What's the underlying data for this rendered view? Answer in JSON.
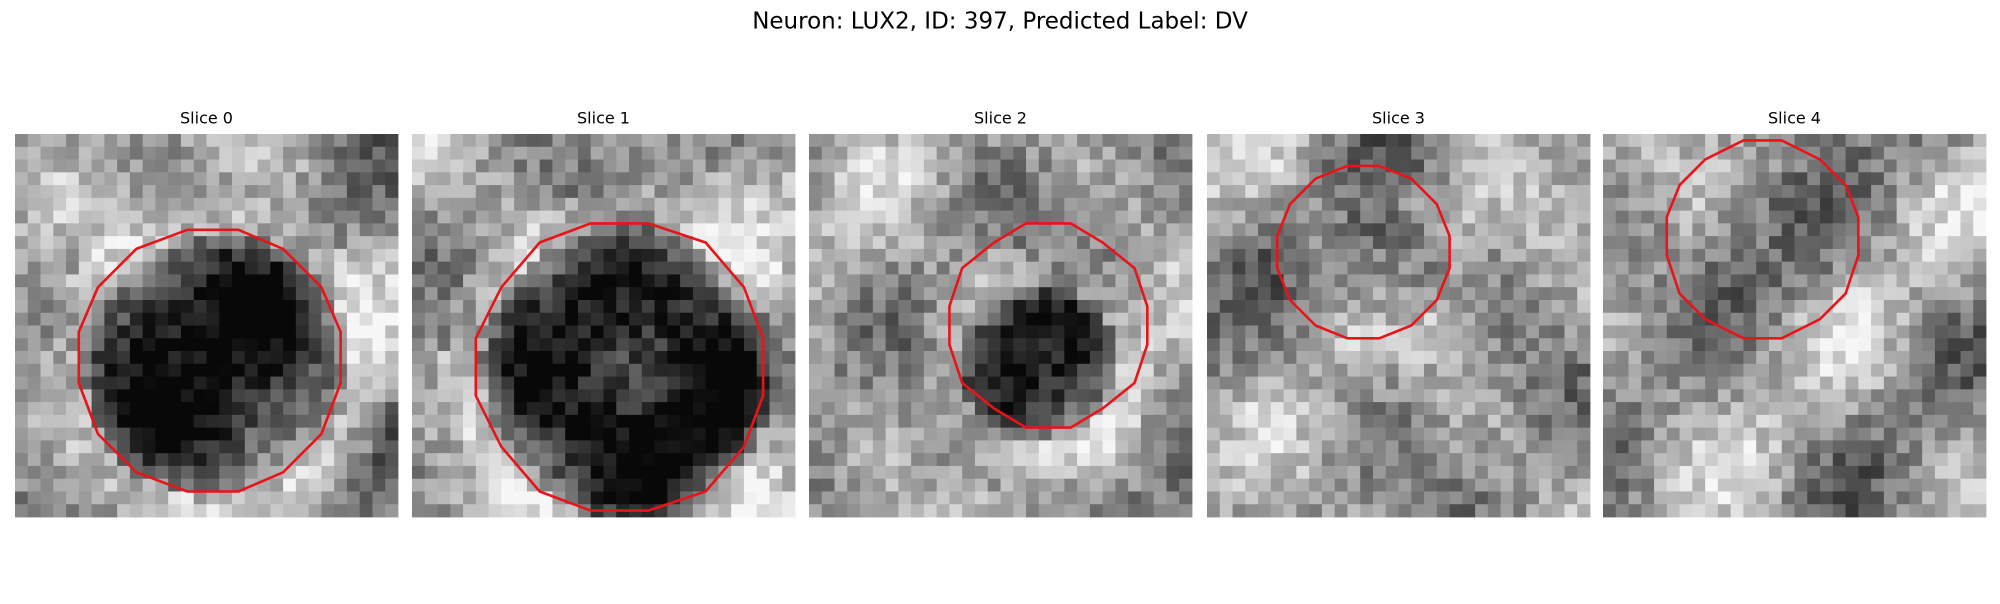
{
  "title": "Neuron: LUX2, ID: 397, Predicted Label: DV",
  "panels": [
    {
      "title": "Slice 0"
    },
    {
      "title": "Slice 1"
    },
    {
      "title": "Slice 2"
    },
    {
      "title": "Slice 3"
    },
    {
      "title": "Slice 4"
    }
  ]
}
